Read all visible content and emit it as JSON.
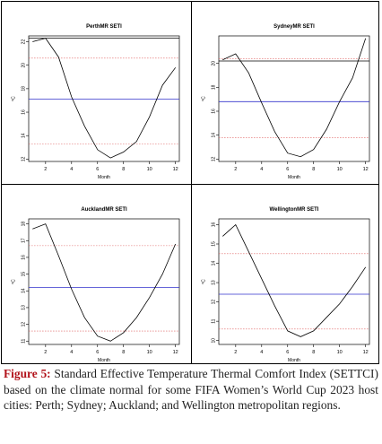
{
  "chart_data": [
    {
      "type": "line",
      "title": "PerthMR SETI",
      "xlabel": "Month",
      "ylabel": "ºC",
      "x": [
        1,
        2,
        3,
        4,
        5,
        6,
        7,
        8,
        9,
        10,
        11,
        12
      ],
      "values": [
        22.0,
        22.3,
        20.7,
        17.3,
        14.8,
        12.8,
        12.1,
        12.6,
        13.5,
        15.6,
        18.3,
        19.8
      ],
      "xticks": [
        2,
        4,
        6,
        8,
        10,
        12
      ],
      "yticks": [
        12,
        14,
        16,
        18,
        20,
        22
      ],
      "xlim": [
        0.7,
        12.3
      ],
      "ylim": [
        11.8,
        22.5
      ],
      "reference_lines": [
        {
          "y": 22.3,
          "color": "#000000",
          "style": "solid"
        },
        {
          "y": 20.6,
          "color": "#e06666",
          "style": "dashed"
        },
        {
          "y": 17.1,
          "color": "#3333cc",
          "style": "solid"
        },
        {
          "y": 13.3,
          "color": "#e06666",
          "style": "dashed"
        }
      ]
    },
    {
      "type": "line",
      "title": "SydneyMR SETI",
      "xlabel": "Month",
      "ylabel": "ºC",
      "x": [
        1,
        2,
        3,
        4,
        5,
        6,
        7,
        8,
        9,
        10,
        11,
        12
      ],
      "values": [
        20.3,
        20.8,
        19.2,
        16.7,
        14.3,
        12.5,
        12.2,
        12.8,
        14.5,
        16.8,
        18.8,
        22.1
      ],
      "xticks": [
        2,
        4,
        6,
        8,
        10,
        12
      ],
      "yticks": [
        12,
        14,
        16,
        18,
        20
      ],
      "xlim": [
        0.7,
        12.3
      ],
      "ylim": [
        11.8,
        22.3
      ],
      "reference_lines": [
        {
          "y": 20.2,
          "color": "#000000",
          "style": "solid"
        },
        {
          "y": 20.4,
          "color": "#e06666",
          "style": "dashed"
        },
        {
          "y": 16.8,
          "color": "#3333cc",
          "style": "solid"
        },
        {
          "y": 13.8,
          "color": "#e06666",
          "style": "dashed"
        }
      ]
    },
    {
      "type": "line",
      "title": "AucklandMR SETI",
      "xlabel": "Month",
      "ylabel": "ºC",
      "x": [
        1,
        2,
        3,
        4,
        5,
        6,
        7,
        8,
        9,
        10,
        11,
        12
      ],
      "values": [
        17.7,
        18.0,
        16.1,
        14.1,
        12.4,
        11.3,
        11.0,
        11.5,
        12.4,
        13.6,
        15.0,
        16.8
      ],
      "xticks": [
        2,
        4,
        6,
        8,
        10,
        12
      ],
      "yticks": [
        11,
        12,
        13,
        14,
        15,
        16,
        17,
        18
      ],
      "xlim": [
        0.7,
        12.3
      ],
      "ylim": [
        10.8,
        18.3
      ],
      "reference_lines": [
        {
          "y": 16.7,
          "color": "#e06666",
          "style": "dashed"
        },
        {
          "y": 14.2,
          "color": "#3333cc",
          "style": "solid"
        },
        {
          "y": 11.6,
          "color": "#e06666",
          "style": "dashed"
        }
      ]
    },
    {
      "type": "line",
      "title": "WellingtonMR SETI",
      "xlabel": "Month",
      "ylabel": "ºC",
      "x": [
        1,
        2,
        3,
        4,
        5,
        6,
        7,
        8,
        9,
        10,
        11,
        12
      ],
      "values": [
        15.4,
        16.0,
        14.6,
        13.2,
        11.8,
        10.5,
        10.2,
        10.5,
        11.2,
        11.9,
        12.8,
        13.8
      ],
      "xticks": [
        2,
        4,
        6,
        8,
        10,
        12
      ],
      "yticks": [
        10,
        11,
        12,
        13,
        14,
        15,
        16
      ],
      "xlim": [
        0.7,
        12.3
      ],
      "ylim": [
        9.8,
        16.3
      ],
      "reference_lines": [
        {
          "y": 14.5,
          "color": "#e06666",
          "style": "dashed"
        },
        {
          "y": 12.4,
          "color": "#3333cc",
          "style": "solid"
        },
        {
          "y": 10.6,
          "color": "#e06666",
          "style": "dashed"
        }
      ]
    }
  ],
  "caption": {
    "label": "Figure 5:",
    "text": "Standard Effective Temperature Thermal Comfort Index (SETTCI) based on the climate normal for some FIFA Women’s World Cup 2023 host cities: Perth; Sydney; Auckland; and Wellington metropolitan regions."
  }
}
